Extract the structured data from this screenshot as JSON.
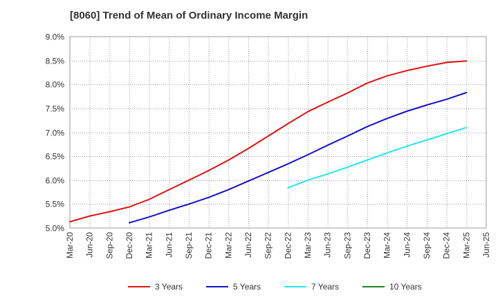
{
  "chart_data": {
    "type": "line",
    "title": "[8060]  Trend of Mean of Ordinary Income Margin",
    "xlabel": "",
    "ylabel": "",
    "ylim": [
      5.0,
      9.0
    ],
    "y_ticks": [
      "5.0%",
      "5.5%",
      "6.0%",
      "6.5%",
      "7.0%",
      "7.5%",
      "8.0%",
      "8.5%",
      "9.0%"
    ],
    "x_ticks": [
      "Mar-20",
      "Jun-20",
      "Sep-20",
      "Dec-20",
      "Mar-21",
      "Jun-21",
      "Sep-21",
      "Dec-21",
      "Mar-22",
      "Jun-22",
      "Sep-22",
      "Dec-22",
      "Mar-23",
      "Jun-23",
      "Sep-23",
      "Dec-23",
      "Mar-24",
      "Jun-24",
      "Sep-24",
      "Dec-24",
      "Mar-25",
      "Jun-25"
    ],
    "grid": true,
    "legend_position": "bottom",
    "series": [
      {
        "name": "3 Years",
        "color": "#e01010",
        "x": [
          "Mar-20",
          "Jun-20",
          "Sep-20",
          "Dec-20",
          "Mar-21",
          "Jun-21",
          "Sep-21",
          "Dec-21",
          "Mar-22",
          "Jun-22",
          "Sep-22",
          "Dec-22",
          "Mar-23",
          "Jun-23",
          "Sep-23",
          "Dec-23",
          "Mar-24",
          "Jun-24",
          "Sep-24",
          "Dec-24",
          "Mar-25"
        ],
        "values": [
          5.13,
          5.25,
          5.34,
          5.44,
          5.6,
          5.8,
          6.0,
          6.2,
          6.42,
          6.66,
          6.92,
          7.18,
          7.43,
          7.63,
          7.82,
          8.03,
          8.18,
          8.29,
          8.38,
          8.46,
          8.49
        ]
      },
      {
        "name": "5 Years",
        "color": "#1010c8",
        "x": [
          "Dec-20",
          "Mar-21",
          "Jun-21",
          "Sep-21",
          "Dec-21",
          "Mar-22",
          "Jun-22",
          "Sep-22",
          "Dec-22",
          "Mar-23",
          "Jun-23",
          "Sep-23",
          "Dec-23",
          "Mar-24",
          "Jun-24",
          "Sep-24",
          "Dec-24",
          "Mar-25"
        ],
        "values": [
          5.11,
          5.23,
          5.37,
          5.5,
          5.64,
          5.8,
          5.98,
          6.16,
          6.34,
          6.53,
          6.73,
          6.92,
          7.12,
          7.29,
          7.44,
          7.57,
          7.69,
          7.83
        ]
      },
      {
        "name": "7 Years",
        "color": "#20e8e8",
        "x": [
          "Dec-22",
          "Mar-23",
          "Jun-23",
          "Sep-23",
          "Dec-23",
          "Mar-24",
          "Jun-24",
          "Sep-24",
          "Dec-24",
          "Mar-25"
        ],
        "values": [
          5.84,
          6.0,
          6.13,
          6.27,
          6.42,
          6.57,
          6.71,
          6.84,
          6.97,
          7.1
        ]
      },
      {
        "name": "10 Years",
        "color": "#208020",
        "x": [],
        "values": []
      }
    ]
  }
}
